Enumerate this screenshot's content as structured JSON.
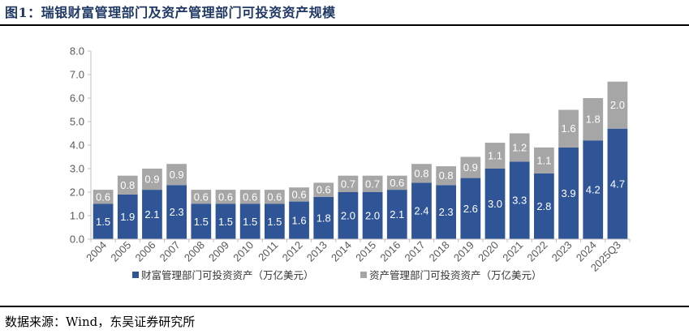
{
  "figure": {
    "title": "图1：瑞银财富管理部门及资产管理部门可投资资产规模",
    "source": "数据来源：Wind，东吴证券研究所"
  },
  "chart_data": {
    "type": "bar",
    "stacked": true,
    "categories": [
      "2004",
      "2005",
      "2006",
      "2007",
      "2008",
      "2009",
      "2010",
      "2011",
      "2012",
      "2013",
      "2014",
      "2015",
      "2016",
      "2017",
      "2018",
      "2019",
      "2020",
      "2021",
      "2022",
      "2023",
      "2024",
      "2025Q3"
    ],
    "series": [
      {
        "name": "财富管理部门可投资资产（万亿美元）",
        "color": "#2f5597",
        "values": [
          1.5,
          1.9,
          2.1,
          2.3,
          1.5,
          1.5,
          1.5,
          1.5,
          1.6,
          1.8,
          2.0,
          2.0,
          2.1,
          2.4,
          2.3,
          2.6,
          3.0,
          3.3,
          2.8,
          3.9,
          4.2,
          4.7
        ]
      },
      {
        "name": "资产管理部门可投资资产（万亿美元）",
        "color": "#a6a6a6",
        "values": [
          0.6,
          0.8,
          0.9,
          0.9,
          0.6,
          0.6,
          0.6,
          0.6,
          0.6,
          0.6,
          0.7,
          0.7,
          0.6,
          0.8,
          0.8,
          0.9,
          1.1,
          1.2,
          1.1,
          1.6,
          1.8,
          2.0
        ]
      }
    ],
    "y_ticks": [
      "0.0",
      "1.0",
      "2.0",
      "3.0",
      "4.0",
      "5.0",
      "6.0",
      "7.0",
      "8.0"
    ],
    "ylim": [
      0,
      8
    ],
    "legend_position": "bottom"
  }
}
